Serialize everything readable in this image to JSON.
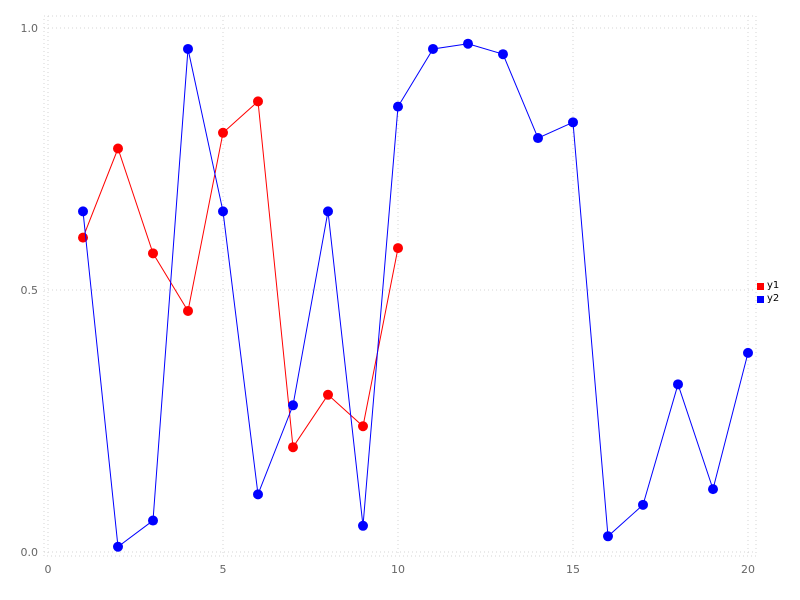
{
  "chart_data": {
    "type": "line",
    "title": "",
    "xlabel": "",
    "ylabel": "",
    "xlim": [
      0,
      20
    ],
    "ylim": [
      0.0,
      1.0
    ],
    "grid": true,
    "grid_style": "dotted",
    "legend_position": "right-outside",
    "x_ticks": [
      {
        "value": 0,
        "label": "0"
      },
      {
        "value": 5,
        "label": "5"
      },
      {
        "value": 10,
        "label": "10"
      },
      {
        "value": 15,
        "label": "15"
      },
      {
        "value": 20,
        "label": "20"
      }
    ],
    "y_ticks": [
      {
        "value": 0.0,
        "label": "0.0"
      },
      {
        "value": 0.5,
        "label": "0.5"
      },
      {
        "value": 1.0,
        "label": "1.0"
      }
    ],
    "series": [
      {
        "name": "y1",
        "color": "#ff0000",
        "marker": "circle",
        "x": [
          1,
          2,
          3,
          4,
          5,
          6,
          7,
          8,
          9,
          10
        ],
        "values": [
          0.6,
          0.77,
          0.57,
          0.46,
          0.8,
          0.86,
          0.2,
          0.3,
          0.24,
          0.58
        ]
      },
      {
        "name": "y2",
        "color": "#0000ff",
        "marker": "circle",
        "x": [
          1,
          2,
          3,
          4,
          5,
          6,
          7,
          8,
          9,
          10,
          11,
          12,
          13,
          14,
          15,
          16,
          17,
          18,
          19,
          20
        ],
        "values": [
          0.65,
          0.01,
          0.06,
          0.96,
          0.65,
          0.11,
          0.28,
          0.65,
          0.05,
          0.85,
          0.96,
          0.97,
          0.95,
          0.79,
          0.82,
          0.03,
          0.09,
          0.32,
          0.12,
          0.38
        ]
      }
    ]
  },
  "colors": {
    "background": "#ffffff",
    "grid": "#d4d4d4",
    "tick_text": "#666666",
    "legend_text": "#000000"
  }
}
